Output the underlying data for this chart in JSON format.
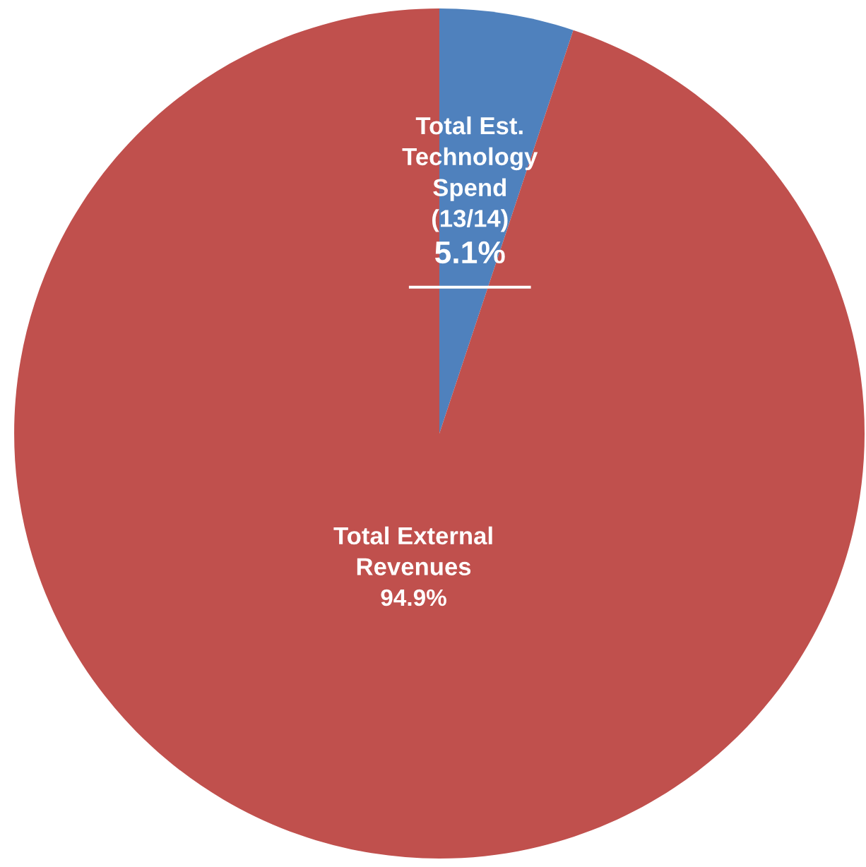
{
  "chart_data": {
    "type": "pie",
    "categories": [
      "Total Est.\nTechnology\nSpend\n(13/14)",
      "Total External\nRevenues"
    ],
    "values": [
      5.1,
      94.9
    ],
    "colors": [
      "#4f81bd",
      "#c0504d"
    ],
    "value_labels": [
      "5.1%",
      "94.9%"
    ]
  }
}
